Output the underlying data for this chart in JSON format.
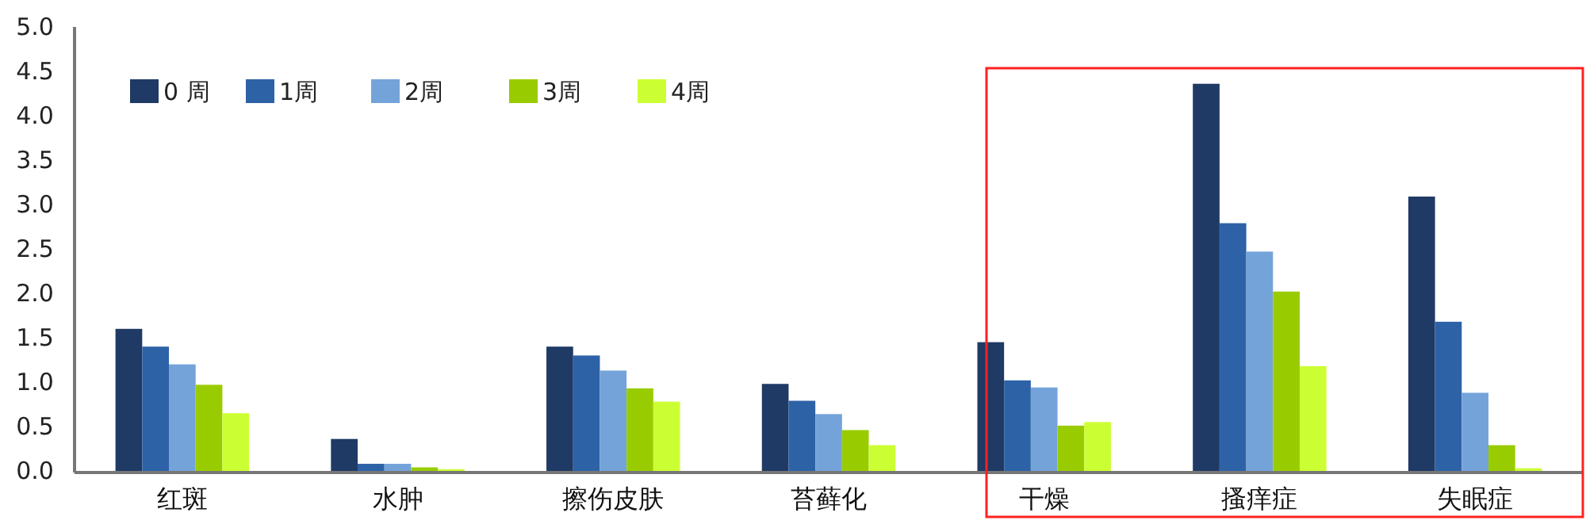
{
  "chart_data": {
    "type": "bar",
    "categories": [
      "红斑",
      "水肿",
      "擦伤皮肤",
      "苔藓化",
      "干燥",
      "搔痒症",
      "失眠症"
    ],
    "series": [
      {
        "name": "0 周",
        "color": "#1f3a64",
        "values": [
          1.6,
          0.36,
          1.4,
          0.98,
          1.45,
          4.36,
          3.09
        ]
      },
      {
        "name": "1周",
        "color": "#2e62a6",
        "values": [
          1.4,
          0.08,
          1.3,
          0.79,
          1.02,
          2.79,
          1.68
        ]
      },
      {
        "name": "2周",
        "color": "#74a3da",
        "values": [
          1.2,
          0.08,
          1.13,
          0.64,
          0.94,
          2.47,
          0.88
        ]
      },
      {
        "name": "3周",
        "color": "#99cc00",
        "values": [
          0.97,
          0.04,
          0.93,
          0.46,
          0.51,
          2.02,
          0.29
        ]
      },
      {
        "name": "4周",
        "color": "#ccff33",
        "values": [
          0.65,
          0.02,
          0.78,
          0.29,
          0.55,
          1.18,
          0.03
        ]
      }
    ],
    "ylim": [
      0,
      5
    ],
    "yticks": [
      {
        "value": 0,
        "label": "0.0"
      },
      {
        "value": 0.5,
        "label": "0.5"
      },
      {
        "value": 1,
        "label": "1.0"
      },
      {
        "value": 1.5,
        "label": "1.5"
      },
      {
        "value": 2,
        "label": "2.0"
      },
      {
        "value": 2.5,
        "label": "2.5"
      },
      {
        "value": 3,
        "label": "3.0"
      },
      {
        "value": 3.5,
        "label": "3.5"
      },
      {
        "value": 4,
        "label": "4.0"
      },
      {
        "value": 4.5,
        "label": "4.5"
      },
      {
        "value": 5,
        "label": "5.0"
      }
    ],
    "grid": false,
    "legend": "top left"
  }
}
